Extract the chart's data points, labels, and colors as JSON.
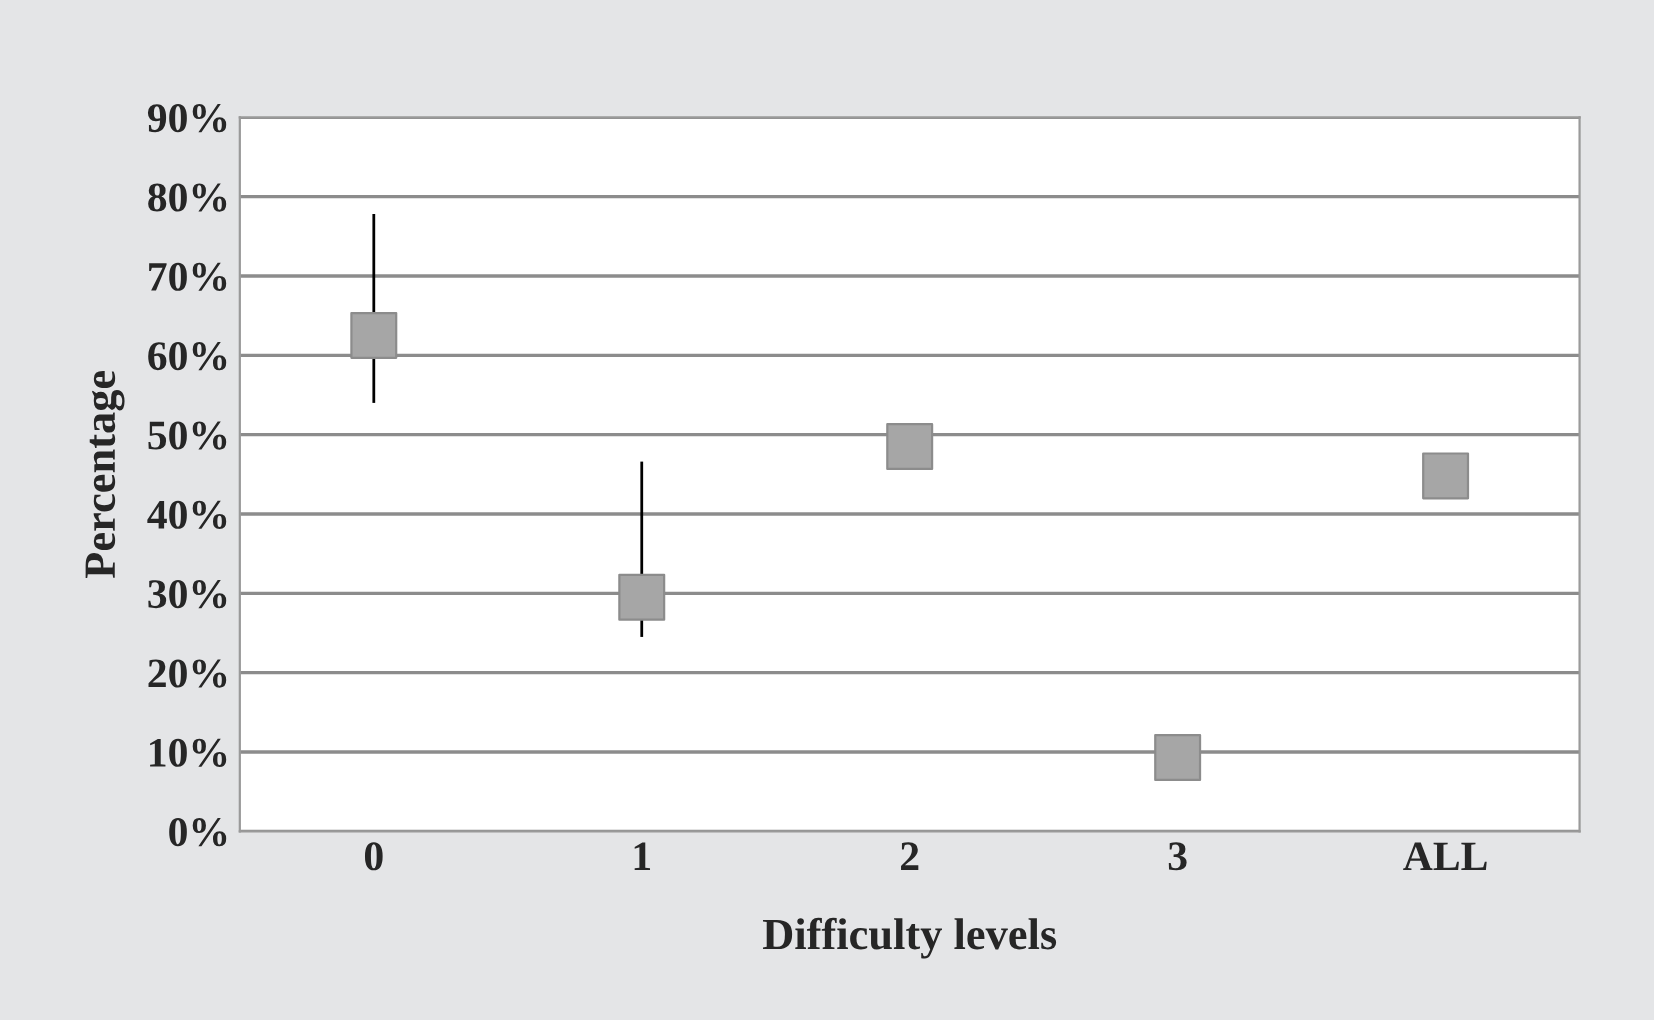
{
  "chart_data": {
    "type": "scatter",
    "xlabel": "Difficulty levels",
    "ylabel": "Percentage",
    "categories": [
      "0",
      "1",
      "2",
      "3",
      "ALL"
    ],
    "series": [
      {
        "color": "#a6a6a6",
        "values": [
          62.5,
          29.5,
          48.5,
          9.3,
          44.8
        ],
        "errors": [
          [
            54,
            77.8
          ],
          [
            24.5,
            46.6
          ],
          null,
          null,
          null
        ]
      }
    ],
    "marker": "square",
    "grid": "y",
    "ylim": [
      0,
      90
    ],
    "yticks": [
      {
        "value": 0,
        "label": "0%"
      },
      {
        "value": 10,
        "label": "10%"
      },
      {
        "value": 20,
        "label": "20%"
      },
      {
        "value": 30,
        "label": "30%"
      },
      {
        "value": 40,
        "label": "40%"
      },
      {
        "value": 50,
        "label": "50%"
      },
      {
        "value": 60,
        "label": "60%"
      },
      {
        "value": 70,
        "label": "70%"
      },
      {
        "value": 80,
        "label": "80%"
      },
      {
        "value": 90,
        "label": "90%"
      }
    ]
  }
}
